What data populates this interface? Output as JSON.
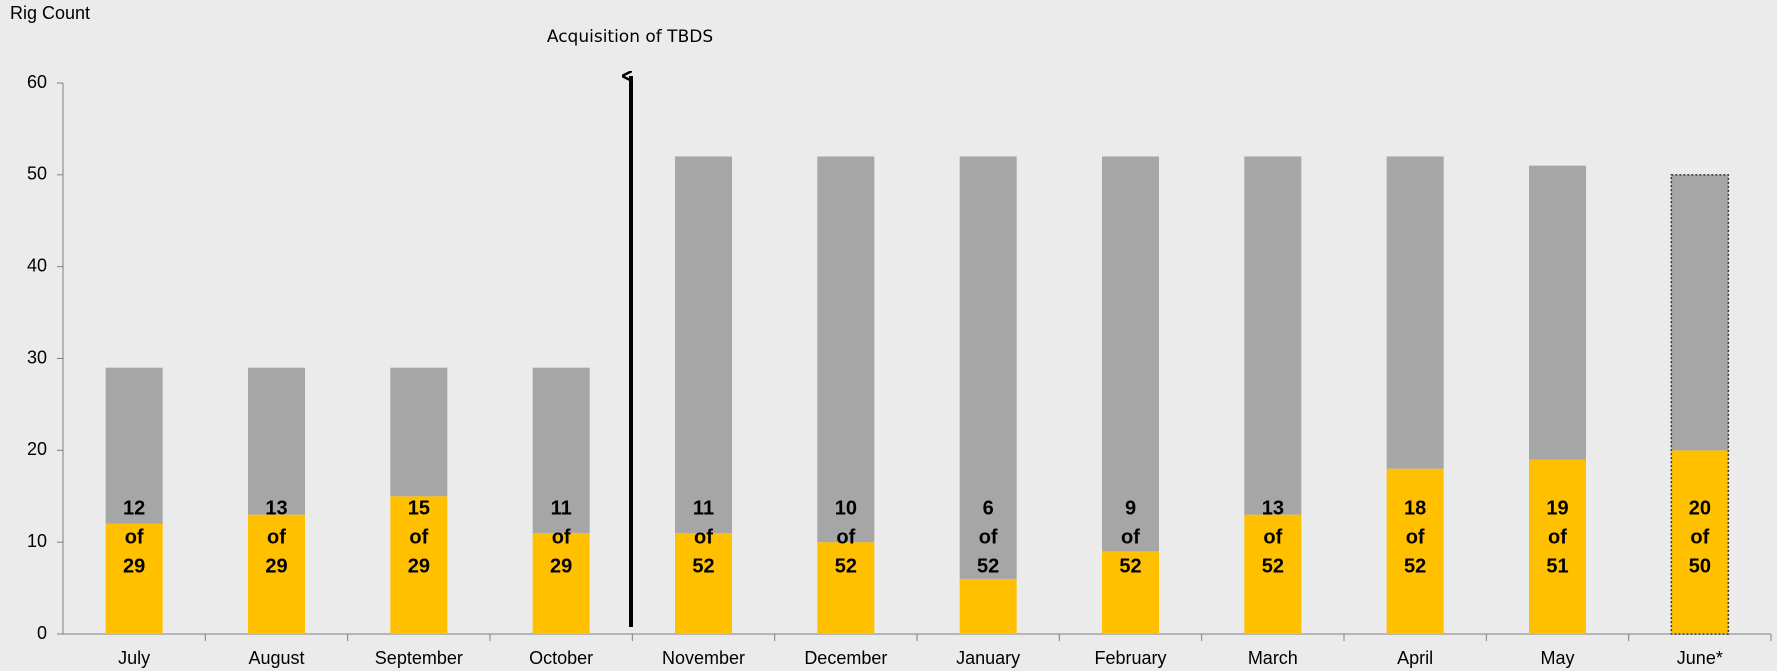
{
  "chart_data": {
    "type": "stacked_bar",
    "y_label": "Rig Count",
    "annotation": "Acquisition of TBDS",
    "categories": [
      "July",
      "August",
      "September",
      "October",
      "November",
      "December",
      "January",
      "February",
      "March",
      "April",
      "May",
      "June*"
    ],
    "series": [
      {
        "color": "#ffc000",
        "values": [
          12,
          13,
          15,
          11,
          11,
          10,
          6,
          9,
          13,
          18,
          19,
          20
        ]
      },
      {
        "color": "#a6a6a6",
        "values": [
          17,
          16,
          14,
          18,
          41,
          42,
          46,
          43,
          39,
          34,
          32,
          30
        ]
      }
    ],
    "label_word": "of",
    "totals": [
      29,
      29,
      29,
      29,
      52,
      52,
      52,
      52,
      52,
      52,
      51,
      50
    ],
    "dotted_outline": [
      false,
      false,
      false,
      false,
      false,
      false,
      false,
      false,
      false,
      false,
      false,
      true
    ],
    "ylim": [
      0,
      60
    ],
    "yticks": [
      0,
      10,
      20,
      30,
      40,
      50,
      60
    ],
    "grid": false
  }
}
